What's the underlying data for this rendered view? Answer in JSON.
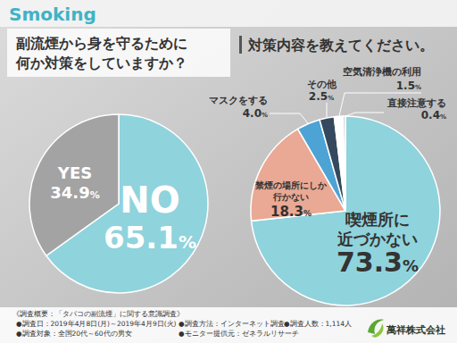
{
  "header": {
    "title": "Smoking"
  },
  "chart_data": [
    {
      "type": "pie",
      "title": "副流煙から身を守るために何か対策をしていますか？",
      "categories": [
        "NO",
        "YES"
      ],
      "values": [
        65.1,
        34.9
      ],
      "value_labels": [
        "65.1%",
        "34.9%"
      ],
      "colors": [
        "#8fd3dd",
        "#a3a3a3"
      ],
      "data_labels": true
    },
    {
      "type": "pie",
      "title": "対策内容を教えてください。",
      "categories": [
        "喫煙所に近づかない",
        "禁煙の場所にしか行かない",
        "マスクをする",
        "その他",
        "空気清浄機の利用",
        "直接注意する"
      ],
      "values": [
        73.3,
        18.3,
        4.0,
        2.5,
        1.5,
        0.4
      ],
      "value_labels": [
        "73.3%",
        "18.3%",
        "4.0%",
        "2.5%",
        "1.5%",
        "0.4%"
      ],
      "colors": [
        "#8fd3dd",
        "#e9a994",
        "#4da3d4",
        "#34495e",
        "#ffffff",
        "#d0d0d0"
      ],
      "data_labels": true
    }
  ],
  "footer": {
    "title": "《調査概要：「タバコの副流煙」に関する意識調査》",
    "items": [
      "●調査日：2019年4月8日(月)～2019年4月9日(火)",
      "●調査方法：インターネット調査",
      "●調査人数：1,114人",
      "●調査対象：全国20代～60代の男女",
      "●モニター提供元：ゼネラルリサーチ"
    ],
    "company": "萬祥株式会社"
  }
}
